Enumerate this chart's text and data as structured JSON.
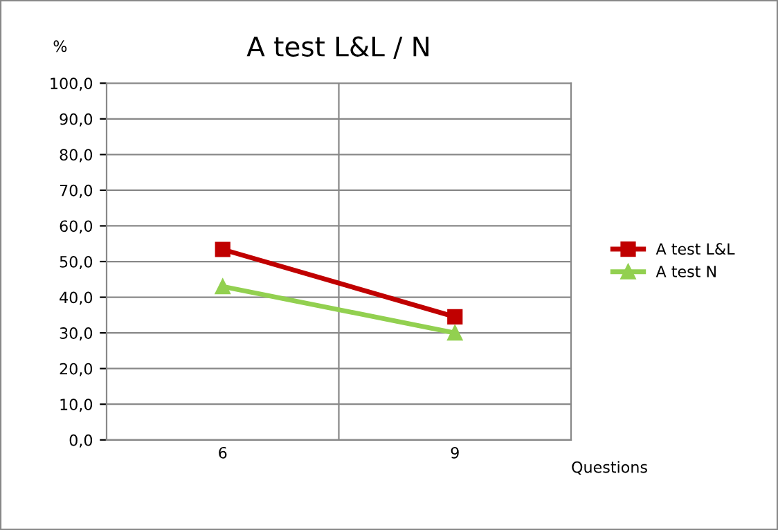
{
  "chart_data": {
    "type": "line",
    "title": "A test L&L / N",
    "xlabel": "Questions",
    "ylabel": "%",
    "categories": [
      "6",
      "9"
    ],
    "series": [
      {
        "name": "A test L&L",
        "color": "#c00000",
        "marker": "square",
        "values": [
          53.4,
          34.5
        ]
      },
      {
        "name": "A test N",
        "color": "#92d050",
        "marker": "triangle",
        "values": [
          43.0,
          30.0
        ]
      }
    ],
    "ylim": [
      0,
      100
    ],
    "yticks": [
      {
        "value": 0,
        "label": "0,0"
      },
      {
        "value": 10,
        "label": "10,0"
      },
      {
        "value": 20,
        "label": "20,0"
      },
      {
        "value": 30,
        "label": "30,0"
      },
      {
        "value": 40,
        "label": "40,0"
      },
      {
        "value": 50,
        "label": "50,0"
      },
      {
        "value": 60,
        "label": "60,0"
      },
      {
        "value": 70,
        "label": "70,0"
      },
      {
        "value": 80,
        "label": "80,0"
      },
      {
        "value": 90,
        "label": "90,0"
      },
      {
        "value": 100,
        "label": "100,0"
      }
    ],
    "grid": true,
    "legend": "right",
    "line_style": "solid"
  }
}
